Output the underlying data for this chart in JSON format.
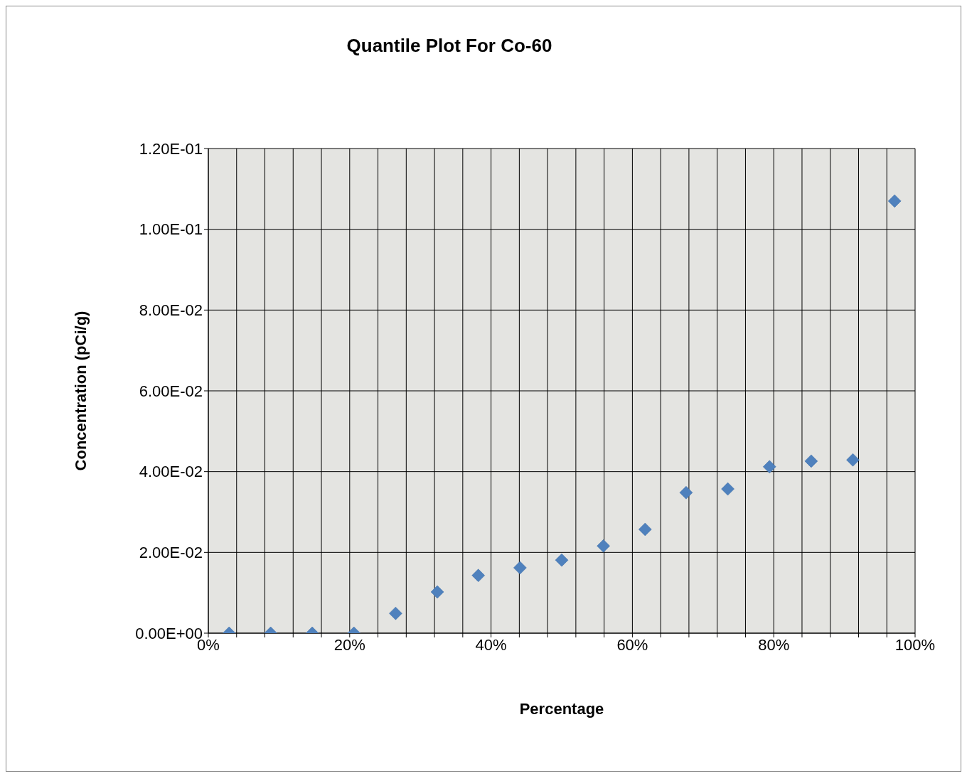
{
  "chart_data": {
    "type": "scatter",
    "title": "Quantile Plot For Co-60",
    "xlabel": "Percentage",
    "ylabel": "Concentration (pCi/g)",
    "x": [
      2.94,
      8.82,
      14.7,
      20.6,
      26.5,
      32.4,
      38.2,
      44.1,
      50,
      55.9,
      61.8,
      67.6,
      73.5,
      79.4,
      85.3,
      91.2,
      97.1
    ],
    "values": [
      0,
      0,
      0,
      0,
      0.0049,
      0.0102,
      0.0143,
      0.0162,
      0.0181,
      0.0216,
      0.0257,
      0.0348,
      0.0357,
      0.0412,
      0.0426,
      0.0429,
      0.107
    ],
    "color": "#4f81bd",
    "marker": "diamond",
    "grid": true,
    "legend": false,
    "xlim": [
      0,
      100
    ],
    "xticks": [
      {
        "value": 0,
        "label": "0%"
      },
      {
        "value": 4,
        "label": null
      },
      {
        "value": 8,
        "label": null
      },
      {
        "value": 12,
        "label": null
      },
      {
        "value": 16,
        "label": null
      },
      {
        "value": 20,
        "label": "20%"
      },
      {
        "value": 24,
        "label": null
      },
      {
        "value": 28,
        "label": null
      },
      {
        "value": 32,
        "label": null
      },
      {
        "value": 36,
        "label": null
      },
      {
        "value": 40,
        "label": "40%"
      },
      {
        "value": 44,
        "label": null
      },
      {
        "value": 48,
        "label": null
      },
      {
        "value": 52,
        "label": null
      },
      {
        "value": 56,
        "label": null
      },
      {
        "value": 60,
        "label": "60%"
      },
      {
        "value": 64,
        "label": null
      },
      {
        "value": 68,
        "label": null
      },
      {
        "value": 72,
        "label": null
      },
      {
        "value": 76,
        "label": null
      },
      {
        "value": 80,
        "label": "80%"
      },
      {
        "value": 84,
        "label": null
      },
      {
        "value": 88,
        "label": null
      },
      {
        "value": 92,
        "label": null
      },
      {
        "value": 96,
        "label": null
      },
      {
        "value": 100,
        "label": "100%"
      }
    ],
    "ylim": [
      0,
      0.12
    ],
    "yticks": [
      {
        "value": 0,
        "label": "0.00E+00"
      },
      {
        "value": 0.02,
        "label": "2.00E-02"
      },
      {
        "value": 0.04,
        "label": "4.00E-02"
      },
      {
        "value": 0.06,
        "label": "6.00E-02"
      },
      {
        "value": 0.08,
        "label": "8.00E-02"
      },
      {
        "value": 0.1,
        "label": "1.00E-01"
      },
      {
        "value": 0.12,
        "label": "1.20E-01"
      }
    ]
  }
}
